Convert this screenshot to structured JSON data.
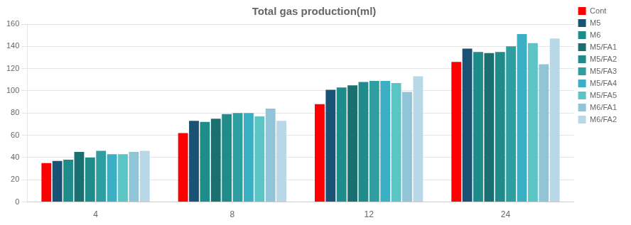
{
  "chart_data": {
    "type": "bar",
    "title": "Total gas production(ml)",
    "categories": [
      "4",
      "8",
      "12",
      "24"
    ],
    "series": [
      {
        "name": "Cont",
        "color": "#FF0000",
        "values": [
          35,
          62,
          88,
          126
        ]
      },
      {
        "name": "M5",
        "color": "#1A5276",
        "values": [
          37,
          73,
          101,
          138
        ]
      },
      {
        "name": "M6",
        "color": "#1F8C8C",
        "values": [
          38,
          72,
          103,
          135
        ]
      },
      {
        "name": "M5/FA1",
        "color": "#1A7070",
        "values": [
          45,
          75,
          105,
          134
        ]
      },
      {
        "name": "M5/FA2",
        "color": "#208B8B",
        "values": [
          40,
          79,
          108,
          135
        ]
      },
      {
        "name": "M5/FA3",
        "color": "#2E9EA0",
        "values": [
          46,
          80,
          109,
          140
        ]
      },
      {
        "name": "M5/FA4",
        "color": "#3BAFC4",
        "values": [
          43,
          80,
          109,
          151
        ]
      },
      {
        "name": "M5/FA5",
        "color": "#5BC4C4",
        "values": [
          43,
          77,
          107,
          143
        ]
      },
      {
        "name": "M6/FA1",
        "color": "#92C4D8",
        "values": [
          45,
          84,
          99,
          124
        ]
      },
      {
        "name": "M6/FA2",
        "color": "#B8D8E8",
        "values": [
          46,
          73,
          113,
          147
        ]
      }
    ],
    "ylim": [
      0,
      160
    ],
    "yticks": [
      0,
      20,
      40,
      60,
      80,
      100,
      120,
      140,
      160
    ],
    "grid": true,
    "legend": "right"
  }
}
